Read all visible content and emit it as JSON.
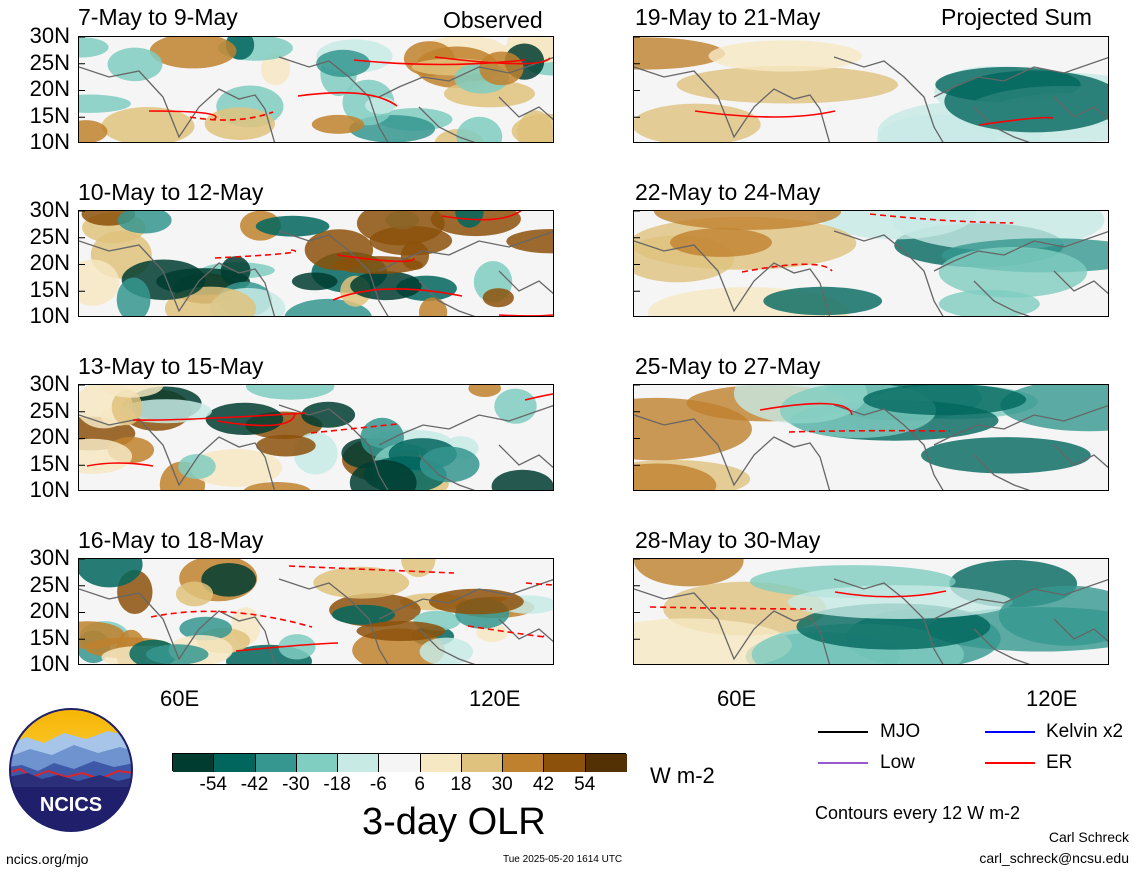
{
  "colors": {
    "mjo": "#000000",
    "kelvin": "#0000ff",
    "low": "#9b59d0",
    "er": "#ff0000",
    "coast": "#666666"
  },
  "headers": {
    "observed": "Observed",
    "projected": "Projected Sum"
  },
  "panels": {
    "left": [
      "7-May to 9-May",
      "10-May to 12-May",
      "13-May to 15-May",
      "16-May to 18-May"
    ],
    "right": [
      "19-May to 21-May",
      "22-May to 24-May",
      "25-May to 27-May",
      "28-May to 30-May"
    ]
  },
  "lat_labels": [
    "30N",
    "25N",
    "20N",
    "15N",
    "10N"
  ],
  "lon_labels": [
    "60E",
    "120E"
  ],
  "colorbar": {
    "title": "3-day OLR",
    "unit": "W m-2",
    "ticks": [
      "-54",
      "-42",
      "-30",
      "-18",
      "-6",
      "6",
      "18",
      "30",
      "42",
      "54"
    ],
    "colors": [
      "#003c30",
      "#01665e",
      "#35978f",
      "#80cdc1",
      "#c7eae5",
      "#f5f5f5",
      "#f6e8c3",
      "#dfc27d",
      "#bf812d",
      "#8c510a",
      "#543005"
    ]
  },
  "legend": {
    "mjo": "MJO",
    "kelvin": "Kelvin x2",
    "low": "Low",
    "er": "ER",
    "contours_note": "Contours every 12 W m-2"
  },
  "footer": {
    "site": "ncics.org/mjo",
    "timestamp": "Tue 2025-05-20 1614 UTC",
    "author": "Carl Schreck",
    "email": "carl_schreck@ncsu.edu"
  },
  "logo": {
    "text": "NCICS"
  },
  "chart_data": [
    {
      "type": "heatmap",
      "title": "7-May to 9-May",
      "ylabel": "",
      "xlabel": "",
      "x_ticks": [
        "60E",
        "120E"
      ],
      "y_ticks": [
        "30N",
        "25N",
        "20N",
        "15N",
        "10N"
      ],
      "ylim": [
        10,
        30
      ],
      "variable": "3-day OLR anomaly (W m-2)",
      "group": "Observed"
    },
    {
      "type": "heatmap",
      "title": "10-May to 12-May",
      "x_ticks": [
        "60E",
        "120E"
      ],
      "y_ticks": [
        "30N",
        "25N",
        "20N",
        "15N",
        "10N"
      ],
      "ylim": [
        10,
        30
      ],
      "group": "Observed"
    },
    {
      "type": "heatmap",
      "title": "13-May to 15-May",
      "x_ticks": [
        "60E",
        "120E"
      ],
      "y_ticks": [
        "30N",
        "25N",
        "20N",
        "15N",
        "10N"
      ],
      "ylim": [
        10,
        30
      ],
      "group": "Observed"
    },
    {
      "type": "heatmap",
      "title": "16-May to 18-May",
      "x_ticks": [
        "60E",
        "120E"
      ],
      "y_ticks": [
        "30N",
        "25N",
        "20N",
        "15N",
        "10N"
      ],
      "ylim": [
        10,
        30
      ],
      "group": "Observed"
    },
    {
      "type": "heatmap",
      "title": "19-May to 21-May",
      "x_ticks": [
        "60E",
        "120E"
      ],
      "y_ticks": [
        "30N",
        "25N",
        "20N",
        "15N",
        "10N"
      ],
      "ylim": [
        10,
        30
      ],
      "group": "Projected Sum"
    },
    {
      "type": "heatmap",
      "title": "22-May to 24-May",
      "x_ticks": [
        "60E",
        "120E"
      ],
      "y_ticks": [
        "30N",
        "25N",
        "20N",
        "15N",
        "10N"
      ],
      "ylim": [
        10,
        30
      ],
      "group": "Projected Sum"
    },
    {
      "type": "heatmap",
      "title": "25-May to 27-May",
      "x_ticks": [
        "60E",
        "120E"
      ],
      "y_ticks": [
        "30N",
        "25N",
        "20N",
        "15N",
        "10N"
      ],
      "ylim": [
        10,
        30
      ],
      "group": "Projected Sum"
    },
    {
      "type": "heatmap",
      "title": "28-May to 30-May",
      "x_ticks": [
        "60E",
        "120E"
      ],
      "y_ticks": [
        "30N",
        "25N",
        "20N",
        "15N",
        "10N"
      ],
      "ylim": [
        10,
        30
      ],
      "group": "Projected Sum"
    }
  ]
}
